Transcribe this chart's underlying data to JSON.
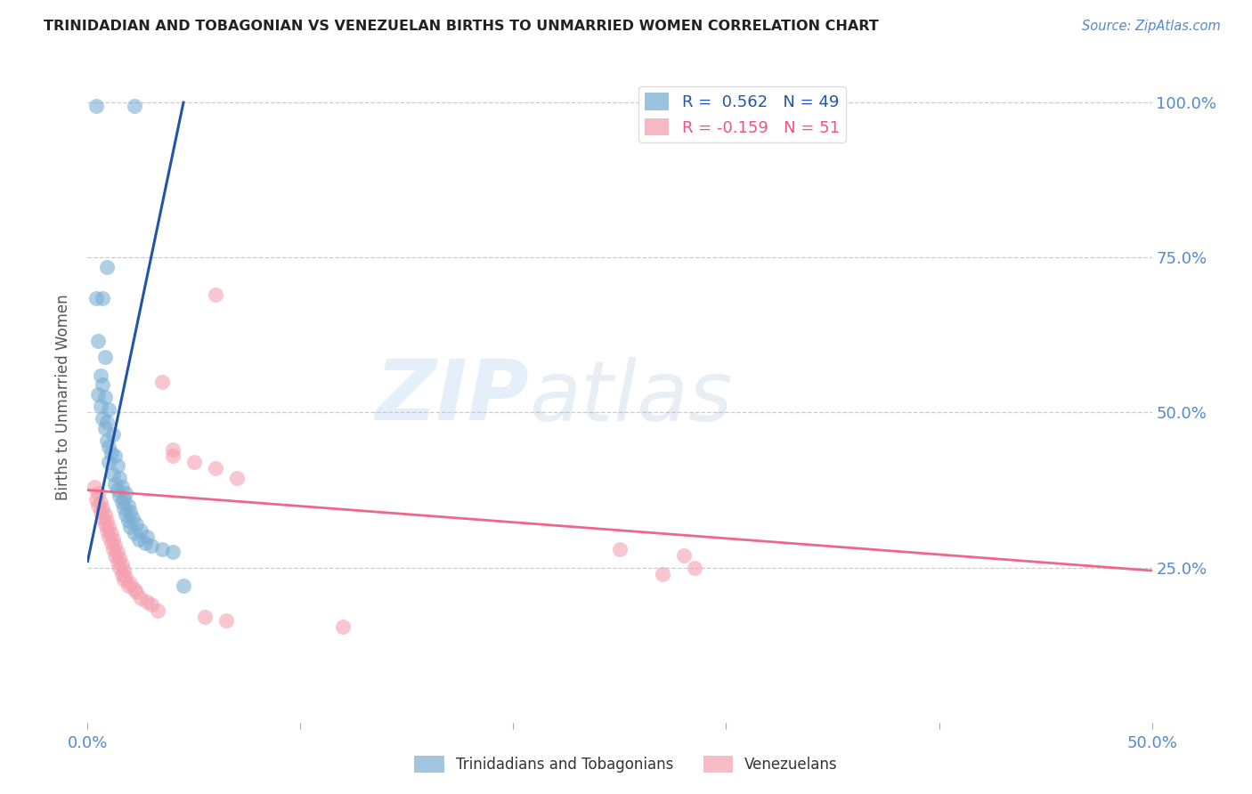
{
  "title": "TRINIDADIAN AND TOBAGONIAN VS VENEZUELAN BIRTHS TO UNMARRIED WOMEN CORRELATION CHART",
  "source": "Source: ZipAtlas.com",
  "ylabel": "Births to Unmarried Women",
  "xlim": [
    0.0,
    0.5
  ],
  "ylim": [
    0.0,
    1.05
  ],
  "ytick_labels": [
    "100.0%",
    "75.0%",
    "50.0%",
    "25.0%"
  ],
  "ytick_values": [
    1.0,
    0.75,
    0.5,
    0.25
  ],
  "xtick_values": [
    0.0,
    0.1,
    0.2,
    0.3,
    0.4,
    0.5
  ],
  "xtick_labels": [
    "0.0%",
    "",
    "",
    "",
    "",
    "50.0%"
  ],
  "blue_R": 0.562,
  "blue_N": 49,
  "pink_R": -0.159,
  "pink_N": 51,
  "blue_color": "#7BAFD4",
  "pink_color": "#F4A0B0",
  "blue_line_color": "#2255AA",
  "pink_line_color": "#EE6688",
  "watermark_zip": "ZIP",
  "watermark_atlas": "atlas",
  "blue_scatter": [
    [
      0.004,
      0.995
    ],
    [
      0.022,
      0.995
    ],
    [
      0.004,
      0.685
    ],
    [
      0.009,
      0.735
    ],
    [
      0.007,
      0.685
    ],
    [
      0.005,
      0.615
    ],
    [
      0.008,
      0.59
    ],
    [
      0.006,
      0.56
    ],
    [
      0.007,
      0.545
    ],
    [
      0.005,
      0.53
    ],
    [
      0.008,
      0.525
    ],
    [
      0.006,
      0.51
    ],
    [
      0.01,
      0.505
    ],
    [
      0.007,
      0.49
    ],
    [
      0.009,
      0.485
    ],
    [
      0.008,
      0.475
    ],
    [
      0.012,
      0.465
    ],
    [
      0.009,
      0.455
    ],
    [
      0.01,
      0.445
    ],
    [
      0.011,
      0.435
    ],
    [
      0.013,
      0.43
    ],
    [
      0.01,
      0.42
    ],
    [
      0.014,
      0.415
    ],
    [
      0.012,
      0.4
    ],
    [
      0.015,
      0.395
    ],
    [
      0.013,
      0.385
    ],
    [
      0.016,
      0.38
    ],
    [
      0.014,
      0.375
    ],
    [
      0.018,
      0.37
    ],
    [
      0.015,
      0.365
    ],
    [
      0.017,
      0.36
    ],
    [
      0.016,
      0.355
    ],
    [
      0.019,
      0.35
    ],
    [
      0.017,
      0.345
    ],
    [
      0.02,
      0.34
    ],
    [
      0.018,
      0.335
    ],
    [
      0.021,
      0.33
    ],
    [
      0.019,
      0.325
    ],
    [
      0.023,
      0.32
    ],
    [
      0.02,
      0.315
    ],
    [
      0.025,
      0.31
    ],
    [
      0.022,
      0.305
    ],
    [
      0.028,
      0.3
    ],
    [
      0.024,
      0.295
    ],
    [
      0.027,
      0.29
    ],
    [
      0.03,
      0.285
    ],
    [
      0.035,
      0.28
    ],
    [
      0.04,
      0.275
    ],
    [
      0.045,
      0.22
    ]
  ],
  "pink_scatter": [
    [
      0.003,
      0.38
    ],
    [
      0.005,
      0.37
    ],
    [
      0.004,
      0.36
    ],
    [
      0.006,
      0.355
    ],
    [
      0.005,
      0.35
    ],
    [
      0.007,
      0.345
    ],
    [
      0.006,
      0.34
    ],
    [
      0.008,
      0.335
    ],
    [
      0.007,
      0.33
    ],
    [
      0.009,
      0.325
    ],
    [
      0.008,
      0.32
    ],
    [
      0.01,
      0.315
    ],
    [
      0.009,
      0.31
    ],
    [
      0.011,
      0.305
    ],
    [
      0.01,
      0.3
    ],
    [
      0.012,
      0.295
    ],
    [
      0.011,
      0.29
    ],
    [
      0.013,
      0.285
    ],
    [
      0.012,
      0.28
    ],
    [
      0.014,
      0.275
    ],
    [
      0.013,
      0.27
    ],
    [
      0.015,
      0.265
    ],
    [
      0.014,
      0.26
    ],
    [
      0.016,
      0.255
    ],
    [
      0.015,
      0.25
    ],
    [
      0.017,
      0.245
    ],
    [
      0.016,
      0.24
    ],
    [
      0.018,
      0.235
    ],
    [
      0.017,
      0.23
    ],
    [
      0.02,
      0.225
    ],
    [
      0.019,
      0.22
    ],
    [
      0.022,
      0.215
    ],
    [
      0.023,
      0.21
    ],
    [
      0.025,
      0.2
    ],
    [
      0.028,
      0.195
    ],
    [
      0.03,
      0.19
    ],
    [
      0.033,
      0.18
    ],
    [
      0.06,
      0.69
    ],
    [
      0.035,
      0.55
    ],
    [
      0.04,
      0.44
    ],
    [
      0.04,
      0.43
    ],
    [
      0.05,
      0.42
    ],
    [
      0.06,
      0.41
    ],
    [
      0.07,
      0.395
    ],
    [
      0.055,
      0.17
    ],
    [
      0.065,
      0.165
    ],
    [
      0.12,
      0.155
    ],
    [
      0.25,
      0.28
    ],
    [
      0.27,
      0.24
    ],
    [
      0.28,
      0.27
    ],
    [
      0.285,
      0.25
    ]
  ],
  "blue_trend_x": [
    0.0,
    0.045
  ],
  "blue_trend_y": [
    0.26,
    1.0
  ],
  "pink_trend_x": [
    0.0,
    0.5
  ],
  "pink_trend_y": [
    0.375,
    0.245
  ]
}
